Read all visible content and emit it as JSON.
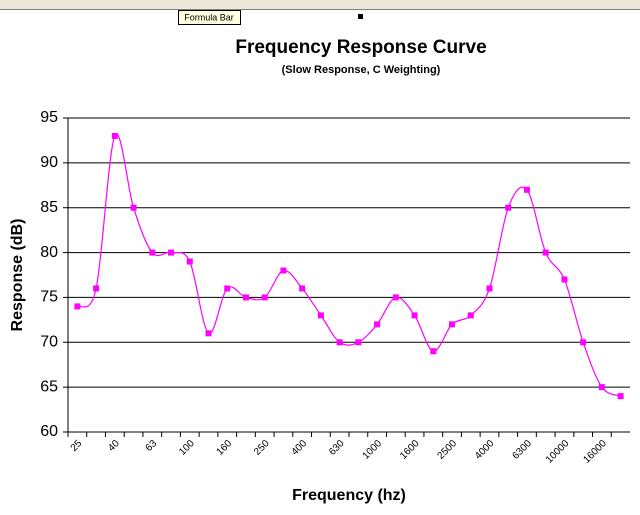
{
  "tooltip": "Formula Bar",
  "chart_data": {
    "type": "line",
    "title": "Frequency Response Curve",
    "subtitle": "(Slow Response, C Weighting)",
    "x_label": "Frequency (hz)",
    "y_label": "Response (dB)",
    "categories": [
      "25",
      null,
      "40",
      null,
      "63",
      null,
      "100",
      null,
      "160",
      null,
      "250",
      null,
      "400",
      null,
      "630",
      null,
      "1000",
      null,
      "1600",
      null,
      "2500",
      null,
      "4000",
      null,
      "6300",
      null,
      "10000",
      null,
      "16000",
      null
    ],
    "series": [
      {
        "color": "#ff00ff",
        "values": [
          74,
          76,
          93,
          85,
          80,
          80,
          79,
          71,
          76,
          75,
          75,
          78,
          76,
          73,
          70,
          70,
          72,
          75,
          73,
          69,
          72,
          73,
          76,
          85,
          87,
          80,
          77,
          70,
          65,
          64
        ]
      }
    ],
    "ylim": [
      60,
      95
    ],
    "yticks": [
      60,
      65,
      70,
      75,
      80,
      85,
      90,
      95
    ],
    "grid": true
  }
}
